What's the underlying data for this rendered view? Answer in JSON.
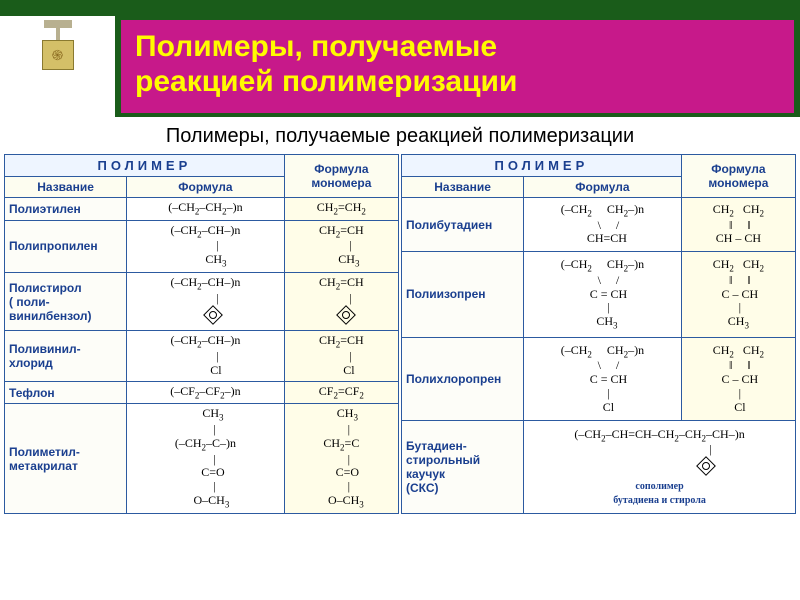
{
  "colors": {
    "header_bg": "#c7198a",
    "header_border": "#1a5c1a",
    "title_text": "#fffb00",
    "table_border": "#2c5aa0",
    "header_text": "#1a3f8f",
    "monomer_bg": "#fffde8"
  },
  "title": {
    "line1": "Полимеры, получаемые",
    "line2": "реакцией полимеризации"
  },
  "subtitle": "Полимеры, получаемые реакцией полимеризации",
  "headers": {
    "polymer": "ПОЛИМЕР",
    "name": "Название",
    "formula": "Формула",
    "monomer": "Формула мономера"
  },
  "left_table": [
    {
      "name": "Полиэтилен",
      "formula_html": "(–CH<sub>2</sub>–CH<sub>2</sub>–)n",
      "monomer_html": "CH<sub>2</sub>=CH<sub>2</sub>"
    },
    {
      "name": "Полипропилен",
      "formula_html": "(–CH<sub>2</sub>–CH–)n<br>&nbsp;&nbsp;&nbsp;&nbsp;&nbsp;&nbsp;&nbsp;&nbsp;|<br>&nbsp;&nbsp;&nbsp;&nbsp;&nbsp;&nbsp;&nbsp;CH<sub>3</sub>",
      "monomer_html": "CH<sub>2</sub>=CH<br>&nbsp;&nbsp;&nbsp;&nbsp;&nbsp;&nbsp;|<br>&nbsp;&nbsp;&nbsp;&nbsp;&nbsp;CH<sub>3</sub>",
      "merge_formula_with_prev": false
    },
    {
      "name": "Полистирол\n( поли-\nвинилбензол)",
      "formula_html": "(–CH<sub>2</sub>–CH–)n<br>&nbsp;&nbsp;&nbsp;&nbsp;&nbsp;&nbsp;&nbsp;&nbsp;|<br>&nbsp;&nbsp;&nbsp;&nbsp;&nbsp;<span class=\"benzene\"></span>",
      "monomer_html": "CH<sub>2</sub>=CH<br>&nbsp;&nbsp;&nbsp;&nbsp;&nbsp;&nbsp;|<br>&nbsp;&nbsp;&nbsp;<span class=\"benzene\"></span>"
    },
    {
      "name": "Поливинил-\nхлорид",
      "formula_html": "(–CH<sub>2</sub>–CH–)n<br>&nbsp;&nbsp;&nbsp;&nbsp;&nbsp;&nbsp;&nbsp;&nbsp;|<br>&nbsp;&nbsp;&nbsp;&nbsp;&nbsp;&nbsp;&nbsp;Cl",
      "monomer_html": "CH<sub>2</sub>=CH<br>&nbsp;&nbsp;&nbsp;&nbsp;&nbsp;&nbsp;|<br>&nbsp;&nbsp;&nbsp;&nbsp;&nbsp;Cl"
    },
    {
      "name": "Тефлон",
      "formula_html": "(–CF<sub>2</sub>–CF<sub>2</sub>–)n",
      "monomer_html": "CF<sub>2</sub>=CF<sub>2</sub>"
    },
    {
      "name": "Полиметил-\nметакрилат",
      "formula_html": "&nbsp;&nbsp;&nbsp;&nbsp;&nbsp;CH<sub>3</sub><br>&nbsp;&nbsp;&nbsp;&nbsp;&nbsp;&nbsp;|<br>(–CH<sub>2</sub>–C–)n<br>&nbsp;&nbsp;&nbsp;&nbsp;&nbsp;&nbsp;|<br>&nbsp;&nbsp;&nbsp;&nbsp;&nbsp;C=O<br>&nbsp;&nbsp;&nbsp;&nbsp;&nbsp;&nbsp;|<br>&nbsp;&nbsp;&nbsp;&nbsp;O–CH<sub>3</sub>",
      "monomer_html": "&nbsp;&nbsp;&nbsp;&nbsp;CH<sub>3</sub><br>&nbsp;&nbsp;&nbsp;&nbsp;&nbsp;|<br>CH<sub>2</sub>=C<br>&nbsp;&nbsp;&nbsp;&nbsp;&nbsp;|<br>&nbsp;&nbsp;&nbsp;&nbsp;C=O<br>&nbsp;&nbsp;&nbsp;&nbsp;&nbsp;|<br>&nbsp;&nbsp;&nbsp;O–CH<sub>3</sub>"
    }
  ],
  "right_table": [
    {
      "name": "Полибутадиен",
      "formula_html": "(–CH<sub>2</sub>&nbsp;&nbsp;&nbsp;&nbsp;&nbsp;CH<sub>2</sub>–)n<br>&nbsp;&nbsp;&nbsp;&nbsp;\\&nbsp;&nbsp;&nbsp;&nbsp;&nbsp;/<br>&nbsp;&nbsp;&nbsp;CH=CH",
      "monomer_html": "CH<sub>2</sub>&nbsp;&nbsp;&nbsp;CH<sub>2</sub><br>&nbsp;‖&nbsp;&nbsp;&nbsp;&nbsp;&nbsp;‖<br>CH&nbsp;–&nbsp;CH"
    },
    {
      "name": "Полиизопрен",
      "formula_html": "(–CH<sub>2</sub>&nbsp;&nbsp;&nbsp;&nbsp;&nbsp;CH<sub>2</sub>–)n<br>&nbsp;&nbsp;&nbsp;&nbsp;\\&nbsp;&nbsp;&nbsp;&nbsp;&nbsp;/<br>&nbsp;&nbsp;&nbsp;&nbsp;C&nbsp;=&nbsp;CH<br>&nbsp;&nbsp;&nbsp;&nbsp;|<br>&nbsp;&nbsp;&nbsp;CH<sub>3</sub>",
      "monomer_html": "CH<sub>2</sub>&nbsp;&nbsp;&nbsp;CH<sub>2</sub><br>&nbsp;‖&nbsp;&nbsp;&nbsp;&nbsp;&nbsp;‖<br>&nbsp;C&nbsp;–&nbsp;CH<br>&nbsp;|<br>CH<sub>3</sub>"
    },
    {
      "name": "Полихлоропрен",
      "formula_html": "(–CH<sub>2</sub>&nbsp;&nbsp;&nbsp;&nbsp;&nbsp;CH<sub>2</sub>–)n<br>&nbsp;&nbsp;&nbsp;&nbsp;\\&nbsp;&nbsp;&nbsp;&nbsp;&nbsp;/<br>&nbsp;&nbsp;&nbsp;&nbsp;C&nbsp;=&nbsp;CH<br>&nbsp;&nbsp;&nbsp;&nbsp;|<br>&nbsp;&nbsp;&nbsp;&nbsp;Cl",
      "monomer_html": "CH<sub>2</sub>&nbsp;&nbsp;&nbsp;CH<sub>2</sub><br>&nbsp;‖&nbsp;&nbsp;&nbsp;&nbsp;&nbsp;‖<br>&nbsp;C&nbsp;–&nbsp;CH<br>&nbsp;|<br>&nbsp;Cl"
    },
    {
      "name": "Бутадиен-\nстирольный\nкаучук\n(СКС)",
      "formula_html": "(–CH<sub>2</sub>–CH=CH–CH<sub>2</sub>–CH<sub>2</sub>–CH–)n<br>&nbsp;&nbsp;&nbsp;&nbsp;&nbsp;&nbsp;&nbsp;&nbsp;&nbsp;&nbsp;&nbsp;&nbsp;&nbsp;&nbsp;&nbsp;&nbsp;&nbsp;&nbsp;&nbsp;&nbsp;&nbsp;&nbsp;&nbsp;&nbsp;&nbsp;&nbsp;&nbsp;&nbsp;&nbsp;&nbsp;&nbsp;&nbsp;&nbsp;&nbsp;|<br>&nbsp;&nbsp;&nbsp;&nbsp;&nbsp;&nbsp;&nbsp;&nbsp;&nbsp;&nbsp;&nbsp;&nbsp;&nbsp;&nbsp;&nbsp;&nbsp;&nbsp;&nbsp;&nbsp;&nbsp;&nbsp;&nbsp;&nbsp;&nbsp;&nbsp;&nbsp;&nbsp;&nbsp;&nbsp;&nbsp;&nbsp;<span class=\"benzene\"></span><br><span class=\"note\">сополимер<br>бутадиена и стирола</span>",
      "span_formula": true
    }
  ]
}
